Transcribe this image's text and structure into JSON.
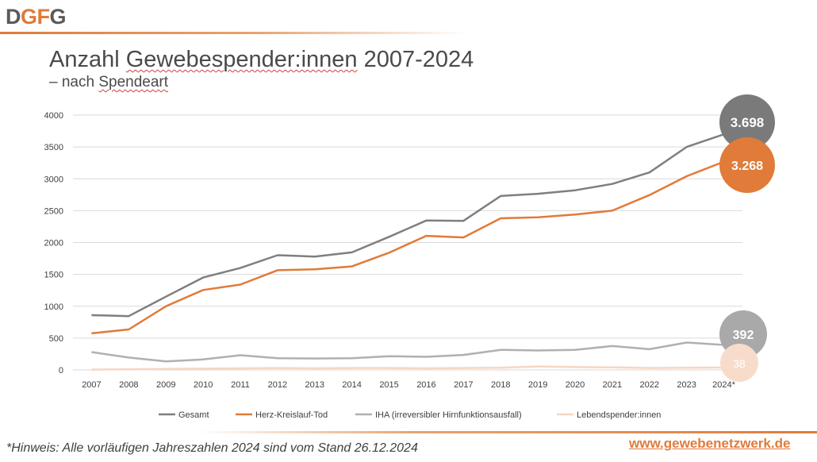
{
  "logo": {
    "text_d": "D",
    "text_g": "G",
    "text_f": "F",
    "text_g2": "G"
  },
  "header": {
    "title_prefix": "Anzahl ",
    "title_wavy": "Gewebespender:innen",
    "title_suffix": " 2007-2024",
    "subtitle_prefix": "– nach ",
    "subtitle_wavy": "Spendeart"
  },
  "footer": {
    "note": "*Hinweis: Alle vorläufigen Jahreszahlen 2024 sind vom Stand 26.12.2024",
    "website": "www.gewebenetzwerk.de"
  },
  "chart_data": {
    "type": "line",
    "x": [
      "2007",
      "2008",
      "2009",
      "2010",
      "2011",
      "2012",
      "2013",
      "2014",
      "2015",
      "2016",
      "2017",
      "2018",
      "2019",
      "2020",
      "2021",
      "2022",
      "2023",
      "2024*"
    ],
    "ylim": [
      0,
      4000
    ],
    "yticks": [
      "0",
      "500",
      "1000",
      "1500",
      "2000",
      "2500",
      "3000",
      "3500",
      "4000"
    ],
    "grid": true,
    "legend_position": "bottom",
    "series": [
      {
        "name": "Gesamt",
        "color": "#7f7f7f",
        "values": [
          860,
          845,
          1150,
          1450,
          1600,
          1800,
          1780,
          1845,
          2090,
          2345,
          2340,
          2730,
          2765,
          2820,
          2920,
          3100,
          3500,
          3698
        ],
        "end_label": "3.698",
        "bubble_color": "#7a7a7a"
      },
      {
        "name": "Herz-Kreislauf-Tod",
        "color": "#e07b39",
        "values": [
          575,
          635,
          1000,
          1255,
          1340,
          1565,
          1580,
          1625,
          1840,
          2105,
          2080,
          2380,
          2395,
          2440,
          2500,
          2745,
          3040,
          3268
        ],
        "end_label": "3.268",
        "bubble_color": "#e07b39"
      },
      {
        "name": "IHA (irreversibler Hirnfunktionsausfall)",
        "color": "#b0b0b0",
        "values": [
          280,
          195,
          135,
          165,
          230,
          185,
          180,
          185,
          215,
          205,
          235,
          315,
          305,
          315,
          375,
          325,
          430,
          392
        ],
        "end_label": "392",
        "bubble_color": "#a9a9a9"
      },
      {
        "name": "Lebendspender:innen",
        "color": "#f6d6c2",
        "values": [
          5,
          10,
          15,
          20,
          25,
          30,
          25,
          30,
          30,
          25,
          30,
          35,
          55,
          45,
          40,
          30,
          35,
          38
        ],
        "end_label": "38",
        "bubble_color": "#f8dccb"
      }
    ]
  }
}
